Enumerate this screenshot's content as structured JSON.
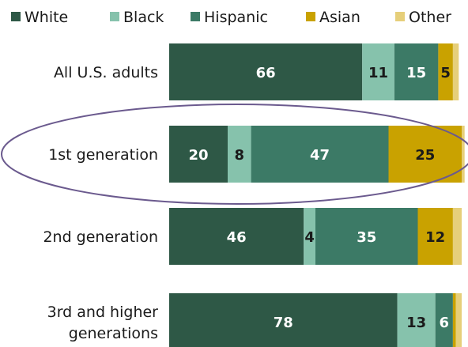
{
  "chart_data": {
    "type": "bar",
    "orientation": "horizontal",
    "stacked": true,
    "categories": [
      "All U.S. adults",
      "1st generation",
      "2nd generation",
      "3rd and higher generations"
    ],
    "series": [
      {
        "name": "White",
        "color": "#2e5846",
        "values": [
          66,
          20,
          46,
          78
        ]
      },
      {
        "name": "Black",
        "color": "#86c2ac",
        "values": [
          11,
          8,
          4,
          13
        ]
      },
      {
        "name": "Hispanic",
        "color": "#3c7a66",
        "values": [
          15,
          47,
          35,
          6
        ]
      },
      {
        "name": "Asian",
        "color": "#c9a200",
        "values": [
          5,
          25,
          12,
          1
        ]
      },
      {
        "name": "Other",
        "color": "#e6cf7a",
        "values": [
          2,
          1,
          3,
          2
        ]
      }
    ],
    "value_labels": [
      [
        "66",
        "11",
        "15",
        "5",
        ""
      ],
      [
        "20",
        "8",
        "47",
        "25",
        ""
      ],
      [
        "46",
        "4",
        "35",
        "12",
        ""
      ],
      [
        "78",
        "13",
        "6",
        "",
        ""
      ]
    ],
    "value_label_colors": [
      [
        "#ffffff",
        "#1a1a1a",
        "#ffffff",
        "#1a1a1a",
        "#1a1a1a"
      ],
      [
        "#ffffff",
        "#1a1a1a",
        "#ffffff",
        "#1a1a1a",
        "#1a1a1a"
      ],
      [
        "#ffffff",
        "#1a1a1a",
        "#ffffff",
        "#1a1a1a",
        "#1a1a1a"
      ],
      [
        "#ffffff",
        "#1a1a1a",
        "#ffffff",
        "#1a1a1a",
        "#1a1a1a"
      ]
    ],
    "xlim": [
      0,
      100
    ],
    "highlighted_category": "1st generation",
    "highlight_color": "#6b5a8e",
    "legend_position": "top",
    "grid": false
  }
}
